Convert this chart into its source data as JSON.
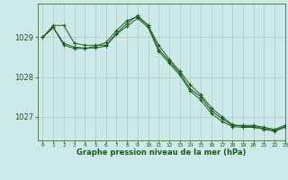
{
  "title": "Graphe pression niveau de la mer (hPa)",
  "background_color": "#cce8e8",
  "grid_color": "#aacccc",
  "line_color": "#1a5c1a",
  "marker_color": "#1a5c1a",
  "xlim": [
    -0.5,
    23
  ],
  "ylim": [
    1026.4,
    1029.85
  ],
  "yticks": [
    1027,
    1028,
    1029
  ],
  "xticks": [
    0,
    1,
    2,
    3,
    4,
    5,
    6,
    7,
    8,
    9,
    10,
    11,
    12,
    13,
    14,
    15,
    16,
    17,
    18,
    19,
    20,
    21,
    22,
    23
  ],
  "series": [
    [
      1029.0,
      1029.3,
      1029.3,
      1028.85,
      1028.8,
      1028.8,
      1028.8,
      1029.1,
      1029.35,
      1029.55,
      1029.3,
      1028.7,
      1028.4,
      1028.1,
      1027.7,
      1027.5,
      1027.15,
      1026.95,
      1026.78,
      1026.78,
      1026.78,
      1026.73,
      1026.68,
      1026.78
    ],
    [
      1029.0,
      1029.25,
      1028.85,
      1028.75,
      1028.73,
      1028.73,
      1028.78,
      1029.08,
      1029.28,
      1029.48,
      1029.25,
      1028.65,
      1028.35,
      1028.05,
      1027.65,
      1027.42,
      1027.08,
      1026.88,
      1026.75,
      1026.73,
      1026.73,
      1026.68,
      1026.63,
      1026.73
    ],
    [
      1029.0,
      1029.25,
      1028.8,
      1028.72,
      1028.72,
      1028.77,
      1028.87,
      1029.17,
      1029.42,
      1029.52,
      1029.3,
      1028.8,
      1028.45,
      1028.15,
      1027.8,
      1027.55,
      1027.22,
      1027.0,
      1026.8,
      1026.75,
      1026.75,
      1026.7,
      1026.65,
      1026.75
    ]
  ]
}
